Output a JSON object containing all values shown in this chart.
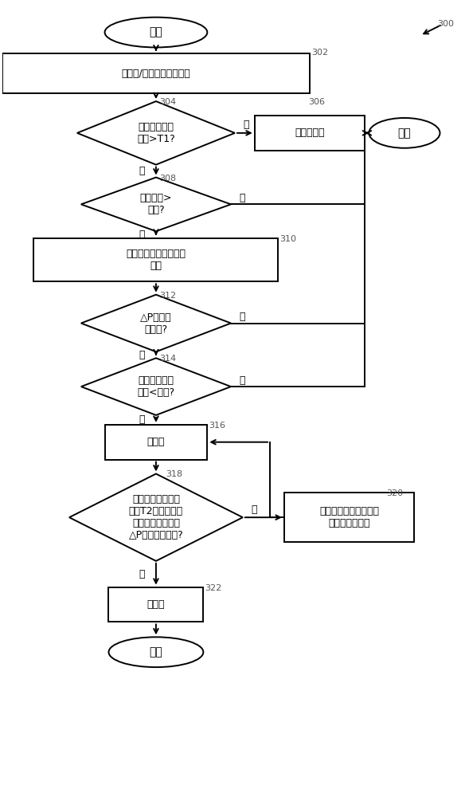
{
  "bg_color": "#ffffff",
  "line_color": "#000000",
  "fs": 9,
  "start_label": "开始",
  "end_label": "结束",
  "node302_label": "估计和/或测量发动机工况",
  "node304_label": "容器中的流体\n水平>T1?",
  "node306_label": "维持阀关闭",
  "node308_label": "机油温度>\n阈值?",
  "node310_label": "确定容器与底壳之间的\n压差",
  "node312_label": "△P在阈值\n范围内?",
  "node314_label": "底壳中的流体\n水平<阈值?",
  "node316_label": "打开阀",
  "node318_label": "容器中的流体水平\n到达T2或底壳中的\n流体水平到阈值或\n△P在阈值范围外?",
  "node320_label": "继续将流体排放到底壳\n内。维持阀打开",
  "node322_label": "关闭阀",
  "yes_label": "是",
  "no_label": "否",
  "ref300": "300",
  "ref302": "302",
  "ref304": "304",
  "ref306": "306",
  "ref308": "308",
  "ref310": "310",
  "ref312": "312",
  "ref314": "314",
  "ref316": "316",
  "ref318": "318",
  "ref320": "320",
  "ref322": "322"
}
